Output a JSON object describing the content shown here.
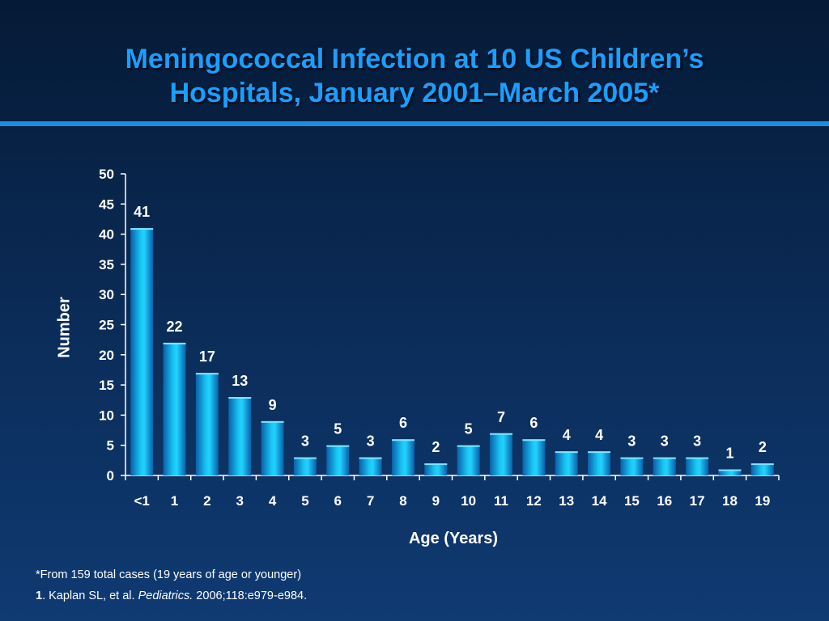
{
  "title_line1": "Meningococcal Infection at 10 US Children’s",
  "title_line2": "Hospitals, January 2001–March 2005*",
  "footnote1": "*From 159  total cases (19 years of age or younger)",
  "footnote2_num": "1",
  "footnote2_authors": ". Kaplan SL, et al. ",
  "footnote2_journal": "Pediatrics.",
  "footnote2_cite": " 2006;118:e979-e984.",
  "colors": {
    "title": "#1a9fff",
    "bar": "#12b8ee",
    "rule": "#1a8fe0"
  },
  "chart_data": {
    "type": "bar",
    "xlabel": "Age (Years)",
    "ylabel": "Number",
    "ylim": [
      0,
      50
    ],
    "yticks": [
      0,
      5,
      10,
      15,
      20,
      25,
      30,
      35,
      40,
      45,
      50
    ],
    "categories": [
      "<1",
      "1",
      "2",
      "3",
      "4",
      "5",
      "6",
      "7",
      "8",
      "9",
      "10",
      "11",
      "12",
      "13",
      "14",
      "15",
      "16",
      "17",
      "18",
      "19"
    ],
    "values": [
      41,
      22,
      17,
      13,
      9,
      3,
      5,
      3,
      6,
      2,
      5,
      7,
      6,
      4,
      4,
      3,
      3,
      3,
      1,
      2
    ],
    "grid": false,
    "legend": "none"
  }
}
